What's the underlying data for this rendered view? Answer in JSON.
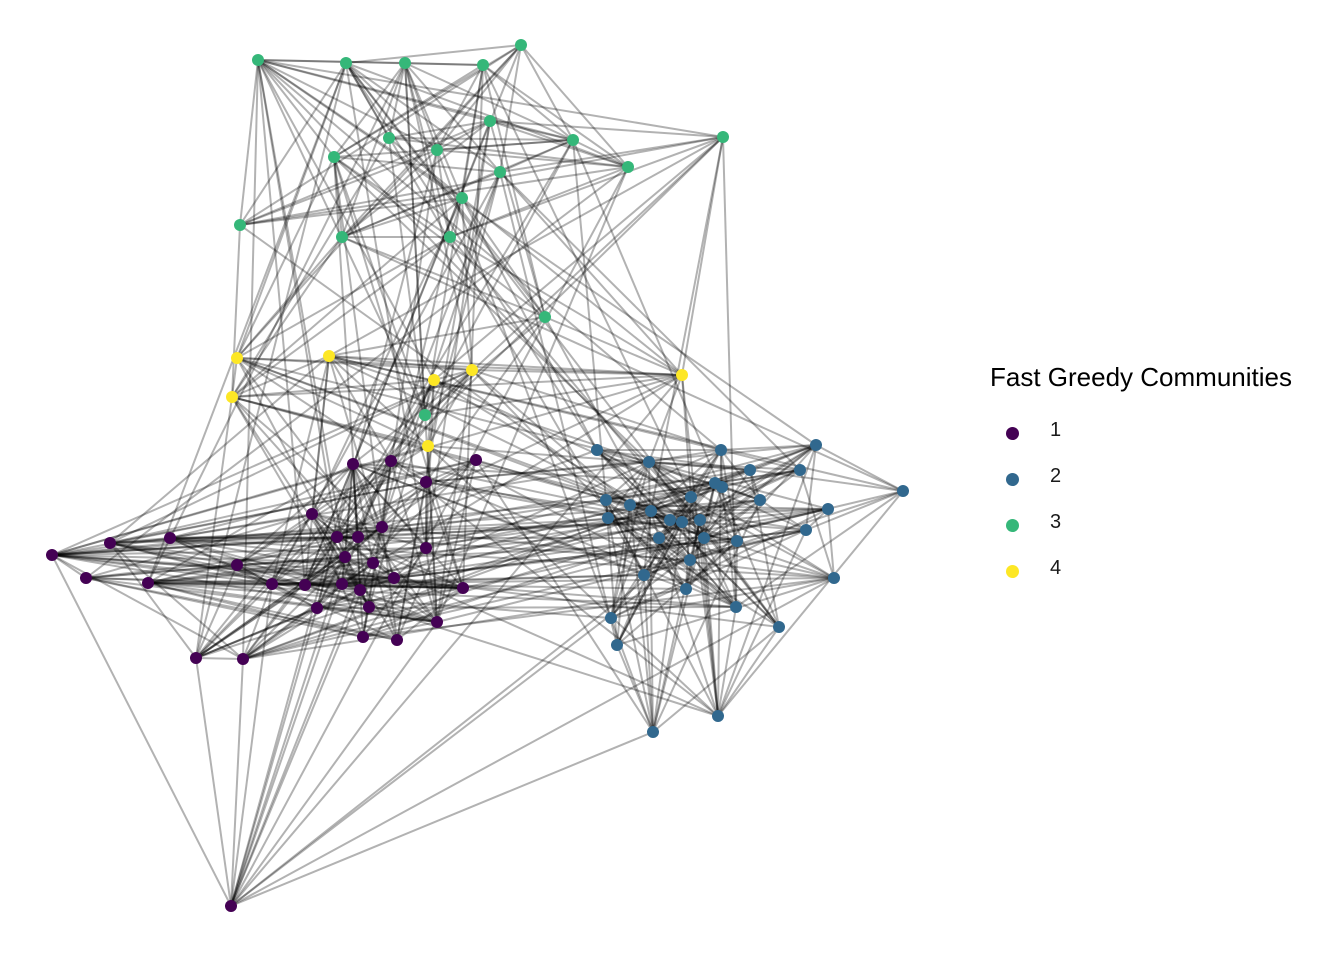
{
  "legend": {
    "title": "Fast Greedy Communities",
    "items": [
      {
        "label": "1",
        "color": "#440154"
      },
      {
        "label": "2",
        "color": "#31688E"
      },
      {
        "label": "3",
        "color": "#35B779"
      },
      {
        "label": "4",
        "color": "#FDE725"
      }
    ]
  },
  "edge_color": "#000000"
}
